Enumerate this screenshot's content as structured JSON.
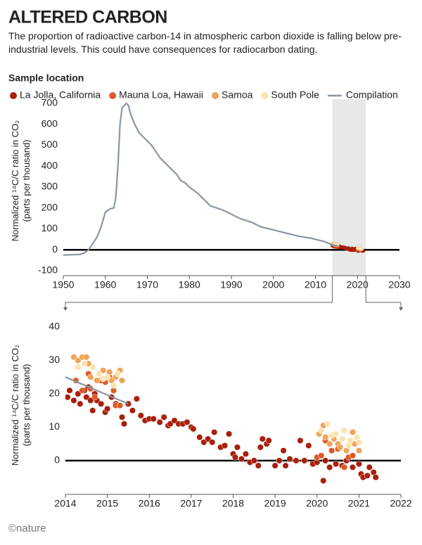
{
  "title": "ALTERED CARBON",
  "subtitle": "The proportion of radioactive carbon-14 in atmospheric carbon dioxide is falling below pre-industrial levels. This could have consequences for radiocarbon dating.",
  "legend_title": "Sample location",
  "footer": "©nature",
  "chart_data": [
    {
      "type": "line",
      "xlim": [
        1950,
        2030
      ],
      "xticks": [
        1950,
        1960,
        1970,
        1980,
        1990,
        2000,
        2010,
        2020,
        2030
      ],
      "ylim": [
        -100,
        700
      ],
      "yticks": [
        -100,
        0,
        100,
        200,
        300,
        400,
        500,
        600,
        700
      ],
      "ylabel": "Normalized ¹⁴C/C ratio in CO₂ (parts per thousand)",
      "grid": false,
      "series": [
        {
          "name": "La Jolla, California",
          "type": "scatter",
          "color": "#a8200d",
          "x": [
            2014.05,
            2014.1,
            2014.2,
            2014.3,
            2014.35,
            2014.45,
            2014.5,
            2014.55,
            2014.6,
            2014.65,
            2014.7,
            2014.75,
            2014.85,
            2014.95,
            2015.0,
            2015.1,
            2015.2,
            2015.35,
            2015.4,
            2015.5,
            2015.6,
            2015.7,
            2015.8,
            2015.9,
            2016.0,
            2016.1,
            2016.25,
            2016.35,
            2016.45,
            2016.5,
            2016.6,
            2016.7,
            2016.8,
            2016.9,
            2017.0,
            2017.05,
            2017.2,
            2017.3,
            2017.4,
            2017.5,
            2017.55,
            2017.7,
            2017.8,
            2017.9,
            2018.0,
            2018.05,
            2018.1,
            2018.2,
            2018.3,
            2018.4,
            2018.5,
            2018.6,
            2018.65,
            2018.7,
            2018.8,
            2018.85,
            2019.0,
            2019.1,
            2019.2,
            2019.25,
            2019.35,
            2019.5,
            2019.6,
            2019.7,
            2019.8,
            2019.9,
            2020.0,
            2020.15,
            2020.2,
            2020.3,
            2020.45,
            2020.6,
            2020.7,
            2020.85,
            2021.0,
            2021.05,
            2021.1,
            2021.2,
            2021.25,
            2021.35,
            2021.4
          ],
          "values": [
            19,
            21,
            18,
            20,
            17,
            21,
            19,
            22,
            18,
            15,
            20,
            18,
            17,
            14.5,
            15.5,
            19,
            17,
            13,
            11,
            17,
            15,
            18.5,
            13.5,
            12,
            12.5,
            12.5,
            11.5,
            13,
            10.5,
            11,
            12,
            11,
            11,
            11.5,
            10,
            9.5,
            7,
            5.5,
            6.5,
            5.5,
            8.5,
            4,
            4.5,
            8,
            2,
            1,
            4,
            0.5,
            2,
            -0.5,
            0,
            -1.5,
            4,
            6.5,
            5,
            6,
            -1.5,
            0,
            3,
            -1.5,
            0.5,
            0,
            6,
            0,
            4.5,
            -1,
            -0.5,
            -6,
            0,
            -2,
            -1,
            -1.5,
            0,
            -2,
            -1,
            -4,
            -5,
            -4.5,
            -2,
            -3.5,
            -5
          ]
        },
        {
          "name": "Mauna Loa, Hawaii",
          "type": "scatter",
          "color": "#dd5a25",
          "x": [
            2014.25,
            2014.4,
            2014.55,
            2014.6,
            2014.7,
            2014.85,
            2014.95,
            2015.05,
            2015.15,
            2015.2,
            2015.3,
            2020.0,
            2020.1,
            2020.2,
            2020.35,
            2020.5,
            2020.65,
            2020.75,
            2020.85
          ],
          "values": [
            24,
            21,
            26,
            21.5,
            19,
            24,
            23.5,
            25,
            21,
            16.5,
            16.5,
            1,
            1.5,
            6,
            3,
            3.5,
            -2,
            1,
            1.5
          ]
        },
        {
          "name": "Samoa",
          "type": "scatter",
          "color": "#f0a35a",
          "x": [
            2014.2,
            2014.3,
            2014.4,
            2014.5,
            2014.55,
            2014.6,
            2014.75,
            2014.9,
            2015.05,
            2015.1,
            2015.2,
            2015.3,
            2015.35,
            2020.05,
            2020.15,
            2020.2,
            2020.3,
            2020.4,
            2020.5,
            2020.55,
            2020.7,
            2020.85,
            2020.9,
            2021.0
          ],
          "values": [
            31,
            30,
            31,
            31,
            29,
            25,
            24,
            27,
            26.5,
            24,
            25,
            27,
            24,
            8,
            10.5,
            7,
            5,
            6.5,
            5,
            4,
            3,
            8.5,
            5,
            3
          ]
        },
        {
          "name": "South Pole",
          "type": "scatter",
          "color": "#fbe2ae",
          "x": [
            2014.3,
            2014.45,
            2014.65,
            2014.8,
            2014.9,
            2015.0,
            2015.15,
            2015.25,
            2020.1,
            2020.25,
            2020.35,
            2020.45,
            2020.6,
            2020.65,
            2020.75,
            2020.8,
            2020.95,
            2021.0
          ],
          "values": [
            28,
            29,
            28,
            26,
            24.5,
            25,
            22.5,
            26,
            9,
            11,
            7.5,
            8,
            6.5,
            9,
            4.5,
            6,
            7,
            5.5
          ]
        },
        {
          "name": "Compilation",
          "type": "line",
          "color": "#8b96a3",
          "x": [
            1950,
            1954,
            1955,
            1956,
            1957,
            1958,
            1959,
            1960,
            1961,
            1962,
            1962.5,
            1963,
            1963.5,
            1964,
            1965,
            1965.5,
            1966,
            1967,
            1968,
            1969,
            1970,
            1971,
            1972,
            1973,
            1974,
            1975,
            1976,
            1977,
            1978,
            1979,
            1980,
            1982,
            1984,
            1985,
            1988,
            1990,
            1992,
            1995,
            1997,
            2000,
            2003,
            2006,
            2009,
            2012,
            2014,
            2015.5
          ],
          "values": [
            -25,
            -22,
            -15,
            0,
            30,
            60,
            110,
            180,
            195,
            200,
            250,
            400,
            600,
            680,
            700,
            690,
            650,
            600,
            560,
            540,
            520,
            500,
            470,
            440,
            420,
            400,
            380,
            360,
            330,
            320,
            300,
            270,
            230,
            210,
            190,
            170,
            150,
            130,
            110,
            95,
            80,
            65,
            55,
            40,
            25,
            17
          ]
        }
      ]
    },
    {
      "type": "scatter",
      "xlim": [
        2014,
        2022
      ],
      "xticks": [
        2014,
        2015,
        2016,
        2017,
        2018,
        2019,
        2020,
        2021,
        2022
      ],
      "ylim": [
        -10,
        40
      ],
      "yticks": [
        0,
        10,
        20,
        30,
        40
      ],
      "ylabel": "Normalized ¹⁴C/C ratio in CO₂ (parts per thousand)",
      "grid": false
    }
  ]
}
